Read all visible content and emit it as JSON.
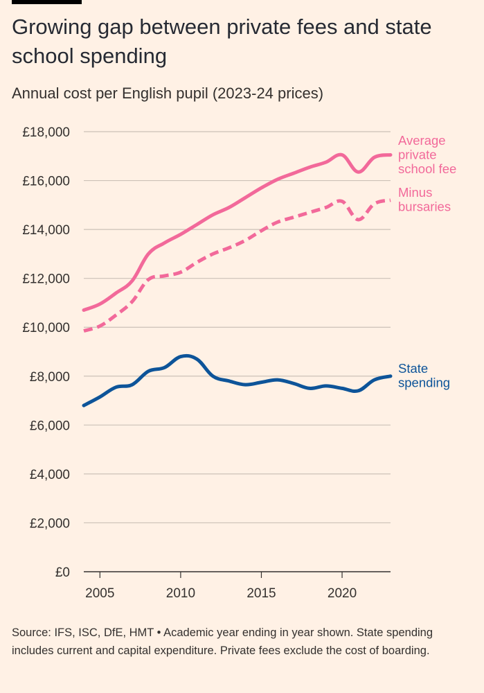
{
  "title": "Growing gap between private fees and state school spending",
  "subtitle": "Annual cost per English pupil (2023-24 prices)",
  "source": "Source: IFS, ISC, DfE, HMT • Academic year ending in year shown. State spending includes current and capital expenditure. Private fees exclude the cost of boarding.",
  "colors": {
    "background": "#FFF1E5",
    "private": "#F2699A",
    "state": "#0D5499",
    "grid": "#CCC1B7",
    "axis": "#33302E"
  },
  "chart_data": {
    "type": "line",
    "title": "Growing gap between private fees and state school spending",
    "ylabel": "Annual cost per English pupil (2023-24 prices)",
    "xlabel": "",
    "xlim": [
      2004,
      2023
    ],
    "ylim": [
      0,
      18000
    ],
    "y_ticks": [
      0,
      2000,
      4000,
      6000,
      8000,
      10000,
      12000,
      14000,
      16000,
      18000
    ],
    "y_tick_labels": [
      "£0",
      "£2,000",
      "£4,000",
      "£6,000",
      "£8,000",
      "£10,000",
      "£12,000",
      "£14,000",
      "£16,000",
      "£18,000"
    ],
    "x_ticks": [
      2005,
      2010,
      2015,
      2020
    ],
    "x_tick_labels": [
      "2005",
      "2010",
      "2015",
      "2020"
    ],
    "grid": true,
    "series": [
      {
        "name": "Average private school fee",
        "label_lines": [
          "Average",
          "private",
          "school fee"
        ],
        "color": "#F2699A",
        "style": "solid",
        "x": [
          2004,
          2005,
          2006,
          2007,
          2008,
          2009,
          2010,
          2011,
          2012,
          2013,
          2014,
          2015,
          2016,
          2017,
          2018,
          2019,
          2020,
          2021,
          2022,
          2023
        ],
        "values": [
          10700,
          10950,
          11400,
          11900,
          13000,
          13450,
          13800,
          14200,
          14600,
          14900,
          15300,
          15700,
          16050,
          16300,
          16550,
          16750,
          17050,
          16350,
          16950,
          17050
        ]
      },
      {
        "name": "Minus bursaries",
        "label_lines": [
          "Minus",
          "bursaries"
        ],
        "color": "#F2699A",
        "style": "dashed",
        "x": [
          2004,
          2005,
          2006,
          2007,
          2008,
          2009,
          2010,
          2011,
          2012,
          2013,
          2014,
          2015,
          2016,
          2017,
          2018,
          2019,
          2020,
          2021,
          2022,
          2023
        ],
        "values": [
          9850,
          10050,
          10500,
          11050,
          11950,
          12100,
          12250,
          12650,
          13000,
          13250,
          13550,
          13950,
          14300,
          14500,
          14700,
          14900,
          15150,
          14400,
          15050,
          15200
        ]
      },
      {
        "name": "State spending",
        "label_lines": [
          "State",
          "spending"
        ],
        "color": "#0D5499",
        "style": "solid",
        "x": [
          2004,
          2005,
          2006,
          2007,
          2008,
          2009,
          2010,
          2011,
          2012,
          2013,
          2014,
          2015,
          2016,
          2017,
          2018,
          2019,
          2020,
          2021,
          2022,
          2023
        ],
        "values": [
          6800,
          7150,
          7550,
          7650,
          8200,
          8350,
          8800,
          8700,
          8000,
          7800,
          7650,
          7750,
          7850,
          7700,
          7500,
          7600,
          7500,
          7400,
          7850,
          8000
        ]
      }
    ]
  }
}
